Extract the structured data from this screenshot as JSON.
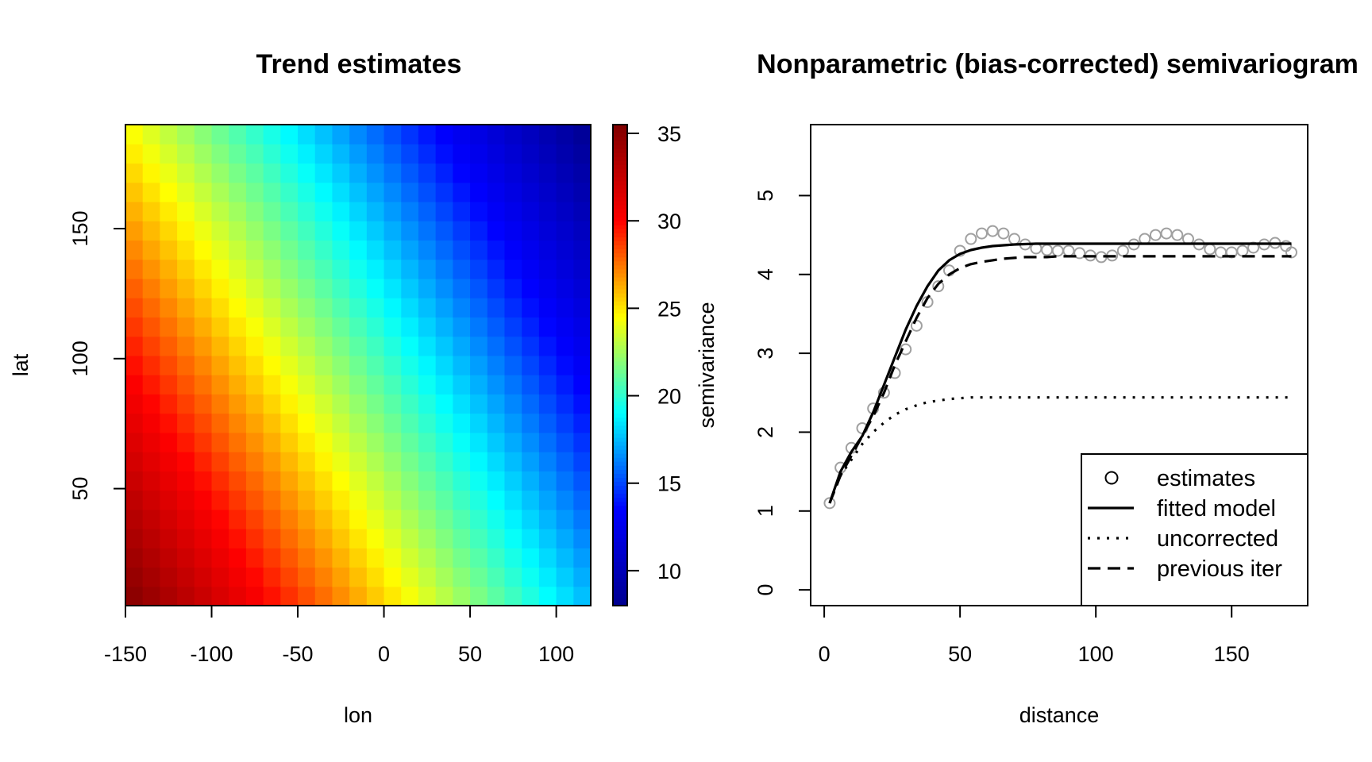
{
  "chart_data": [
    {
      "type": "heatmap",
      "title": "Trend estimates",
      "xlabel": "lon",
      "ylabel": "lat",
      "colorbar_label": "semivariance",
      "xlim": [
        -150,
        120
      ],
      "ylim": [
        5,
        190
      ],
      "x_ticks": [
        -150,
        -100,
        -50,
        0,
        50,
        100
      ],
      "y_ticks": [
        50,
        100,
        150
      ],
      "colorbar_range": [
        8,
        35.5
      ],
      "colorbar_ticks": [
        10,
        15,
        20,
        25,
        30,
        35
      ],
      "colormap": [
        "#00008f",
        "#0000ff",
        "#00ffff",
        "#ffff00",
        "#ff0000",
        "#800000"
      ],
      "grid_cells": [
        27,
        25
      ],
      "surface": {
        "corner_lower_left": 35.5,
        "corner_upper_left": 24.5,
        "corner_lower_right": 17.5,
        "corner_upper_right": 8.0
      }
    },
    {
      "type": "line",
      "title": "Nonparametric (bias-corrected) semivariogram",
      "xlabel": "distance",
      "ylabel": "",
      "xlim": [
        -5,
        178
      ],
      "ylim": [
        -0.2,
        5.9
      ],
      "x_ticks": [
        0,
        50,
        100,
        150
      ],
      "y_ticks": [
        0,
        1,
        2,
        3,
        4,
        5
      ],
      "legend_position": "bottom-right",
      "series": [
        {
          "name": "estimates",
          "style": "points",
          "color": "#a0a0a0",
          "x": [
            2,
            6,
            10,
            14,
            18,
            22,
            26,
            30,
            34,
            38,
            42,
            46,
            50,
            54,
            58,
            62,
            66,
            70,
            74,
            78,
            82,
            86,
            90,
            94,
            98,
            102,
            106,
            110,
            114,
            118,
            122,
            126,
            130,
            134,
            138,
            142,
            146,
            150,
            154,
            158,
            162,
            166,
            170,
            172
          ],
          "y": [
            1.1,
            1.55,
            1.8,
            2.05,
            2.3,
            2.5,
            2.75,
            3.05,
            3.35,
            3.65,
            3.85,
            4.05,
            4.3,
            4.45,
            4.52,
            4.55,
            4.52,
            4.45,
            4.38,
            4.33,
            4.31,
            4.3,
            4.3,
            4.27,
            4.24,
            4.22,
            4.24,
            4.3,
            4.38,
            4.45,
            4.5,
            4.52,
            4.5,
            4.45,
            4.38,
            4.32,
            4.28,
            4.28,
            4.3,
            4.34,
            4.38,
            4.4,
            4.36,
            4.28
          ]
        },
        {
          "name": "fitted model",
          "style": "solid",
          "color": "#000000",
          "x": [
            2,
            6,
            10,
            14,
            18,
            22,
            26,
            30,
            34,
            38,
            42,
            46,
            50,
            54,
            58,
            62,
            66,
            70,
            74,
            78,
            82,
            86,
            90,
            100,
            120,
            140,
            160,
            172
          ],
          "y": [
            1.1,
            1.5,
            1.75,
            1.95,
            2.25,
            2.6,
            2.95,
            3.3,
            3.6,
            3.85,
            4.05,
            4.18,
            4.26,
            4.31,
            4.34,
            4.36,
            4.37,
            4.38,
            4.385,
            4.39,
            4.39,
            4.39,
            4.39,
            4.39,
            4.39,
            4.39,
            4.39,
            4.39
          ]
        },
        {
          "name": "uncorrected",
          "style": "dotted",
          "color": "#000000",
          "x": [
            2,
            6,
            10,
            14,
            18,
            22,
            26,
            30,
            34,
            38,
            42,
            46,
            50,
            54,
            58,
            70,
            100,
            130,
            160,
            172
          ],
          "y": [
            1.1,
            1.45,
            1.65,
            1.85,
            2.0,
            2.12,
            2.22,
            2.29,
            2.34,
            2.38,
            2.4,
            2.42,
            2.43,
            2.44,
            2.44,
            2.44,
            2.44,
            2.44,
            2.44,
            2.44
          ]
        },
        {
          "name": "previous iter",
          "style": "dashed",
          "color": "#000000",
          "x": [
            2,
            6,
            10,
            14,
            18,
            22,
            26,
            30,
            34,
            38,
            42,
            46,
            50,
            54,
            58,
            62,
            66,
            70,
            74,
            78,
            82,
            86,
            90,
            100,
            120,
            140,
            160,
            172
          ],
          "y": [
            1.1,
            1.45,
            1.7,
            1.95,
            2.2,
            2.5,
            2.85,
            3.15,
            3.45,
            3.7,
            3.88,
            4.0,
            4.08,
            4.13,
            4.16,
            4.18,
            4.2,
            4.21,
            4.22,
            4.22,
            4.22,
            4.23,
            4.23,
            4.23,
            4.23,
            4.23,
            4.23,
            4.23
          ]
        }
      ]
    }
  ]
}
